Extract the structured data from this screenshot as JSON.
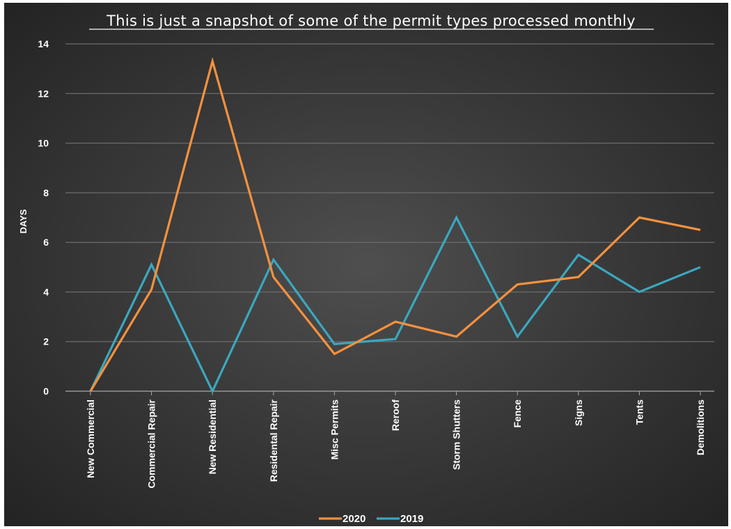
{
  "chart_data": {
    "type": "line",
    "title": "This is just a snapshot of some of the permit types processed monthly",
    "ylabel": "DAYS",
    "xlabel": "",
    "ylim": [
      0,
      14
    ],
    "yticks": [
      0,
      2,
      4,
      6,
      8,
      10,
      12,
      14
    ],
    "grid": true,
    "legend_position": "bottom",
    "categories": [
      "New Commercial",
      "Commercial Repair",
      "New Residential",
      "Residental Repair",
      "Misc Permits",
      "Reroof",
      "Storm Shutters",
      "Fence",
      "Signs",
      "Tents",
      "Demolitions"
    ],
    "series": [
      {
        "name": "2020",
        "color": "#f5913e",
        "values": [
          0,
          4.1,
          13.3,
          4.6,
          1.5,
          2.8,
          2.2,
          4.3,
          4.6,
          7.0,
          6.5
        ]
      },
      {
        "name": "2019",
        "color": "#3ba7bf",
        "values": [
          0,
          5.1,
          0,
          5.3,
          1.9,
          2.1,
          7.0,
          2.2,
          5.5,
          4.0,
          5.0
        ]
      }
    ]
  }
}
